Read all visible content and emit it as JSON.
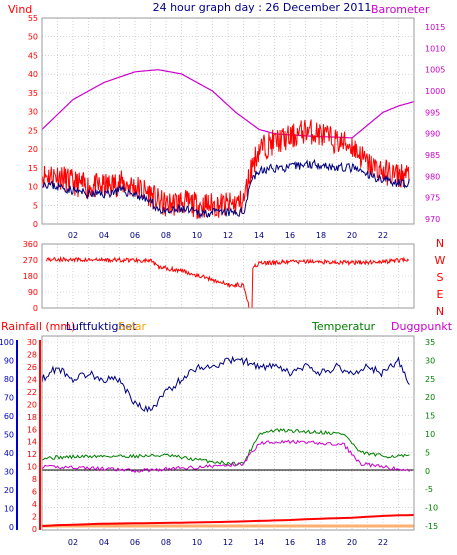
{
  "header": {
    "left": "Vind",
    "center": "24 hour graph day : 26 December 2011",
    "right": "Barometer"
  },
  "colors": {
    "red": "#ff0000",
    "blue": "#000080",
    "magenta": "#cc00cc",
    "green": "#008000",
    "orange": "#ffb070",
    "black": "#000000",
    "grid": "#bbbbbb"
  },
  "chart_data": [
    {
      "type": "line",
      "panel": "wind-barometer",
      "x_ticks": [
        "02",
        "04",
        "06",
        "08",
        "10",
        "12",
        "14",
        "16",
        "18",
        "20",
        "22"
      ],
      "xlim": [
        0,
        24
      ],
      "left_axis": {
        "label": "Vind",
        "ylim": [
          0,
          55
        ],
        "ticks": [
          0,
          5,
          10,
          15,
          20,
          25,
          30,
          35,
          40,
          45,
          50,
          55
        ]
      },
      "right_axis": {
        "label": "Barometer",
        "ylim": [
          970,
          1015
        ],
        "ticks": [
          970,
          975,
          980,
          985,
          990,
          995,
          1000,
          1005,
          1010,
          1015
        ]
      },
      "series": [
        {
          "axis": "left",
          "color": "red",
          "x": [
            0,
            1,
            2,
            3,
            4,
            5,
            6,
            7,
            7.5,
            8,
            9,
            10,
            11,
            12,
            13,
            13.5,
            14,
            15,
            16,
            17,
            18,
            19,
            20,
            21,
            22,
            23,
            23.7
          ],
          "y": [
            13,
            13,
            11,
            10,
            10,
            11,
            10,
            8,
            6,
            5,
            6,
            5,
            5,
            5,
            6,
            15,
            20,
            22,
            23,
            25,
            24,
            22,
            21,
            16,
            14,
            13,
            13
          ]
        },
        {
          "axis": "left",
          "color": "blue",
          "x": [
            0,
            1,
            2,
            3,
            4,
            5,
            6,
            7,
            7.5,
            8,
            9,
            10,
            11,
            12,
            13,
            13.5,
            14,
            15,
            16,
            17,
            18,
            19,
            20,
            21,
            22,
            23,
            23.7
          ],
          "y": [
            11,
            10,
            9,
            8,
            8,
            9,
            8,
            6,
            4,
            3,
            4,
            3,
            3,
            3,
            3,
            12,
            14,
            15,
            15,
            16,
            16,
            15,
            15,
            13,
            12,
            11,
            11
          ]
        },
        {
          "axis": "right",
          "color": "magenta",
          "x": [
            0,
            2,
            4,
            6,
            7.5,
            9,
            11,
            12.5,
            14,
            15,
            16,
            17,
            18,
            19,
            20,
            21,
            22,
            23,
            24
          ],
          "y": [
            991,
            998,
            1002,
            1004.5,
            1005,
            1004,
            1000,
            995,
            991,
            990,
            989.7,
            989.5,
            989.3,
            989.2,
            989,
            992,
            995,
            996.5,
            997.5
          ]
        }
      ]
    },
    {
      "type": "scatter",
      "panel": "wind-direction",
      "xlim": [
        0,
        24
      ],
      "ylim": [
        0,
        360
      ],
      "y_ticks": [
        0,
        90,
        180,
        270,
        360
      ],
      "compass": [
        "N",
        "W",
        "S",
        "E",
        "N"
      ],
      "series": [
        {
          "color": "red",
          "x": [
            0,
            3,
            6,
            7,
            7.5,
            9,
            11,
            12,
            13,
            13.4,
            13.6,
            14,
            16,
            18,
            20,
            22,
            23.7
          ],
          "y": [
            275,
            270,
            270,
            265,
            230,
            210,
            160,
            130,
            130,
            0,
            230,
            250,
            260,
            260,
            255,
            260,
            275
          ]
        }
      ]
    },
    {
      "type": "line",
      "panel": "rain-humidity-temperature",
      "x_ticks": [
        "02",
        "04",
        "06",
        "08",
        "10",
        "12",
        "14",
        "16",
        "18",
        "20",
        "22"
      ],
      "xlim": [
        0,
        24
      ],
      "legend": [
        "Rainfall (mm)",
        "Luftfuktighet",
        "Solar",
        "Temperatur",
        "Duggpunkt"
      ],
      "axes": {
        "rain": {
          "ticks": [
            0,
            10,
            20,
            30,
            40,
            50,
            60,
            70,
            80,
            90,
            100
          ],
          "ylim": [
            0,
            100
          ]
        },
        "humidity": {
          "ticks": [
            0,
            2,
            4,
            6,
            8,
            10,
            12,
            14,
            16,
            18,
            20,
            22,
            24,
            26,
            28,
            30
          ],
          "ylim": [
            0,
            30
          ]
        },
        "temperature": {
          "ticks": [
            -15,
            -10,
            -5,
            0,
            5,
            10,
            15,
            20,
            25,
            30,
            35
          ],
          "ylim": [
            -15,
            35
          ]
        }
      },
      "series": [
        {
          "name": "Luftfuktighet",
          "axis": "humidity",
          "color": "blue",
          "x": [
            0,
            1,
            2,
            3,
            4,
            5,
            5.5,
            6,
            7,
            8,
            9,
            10,
            11,
            12,
            13,
            14,
            15,
            16,
            17,
            18,
            19,
            20,
            21,
            22,
            23,
            23.7
          ],
          "y": [
            24,
            26,
            24,
            25,
            24,
            24,
            22,
            20,
            19,
            22,
            24,
            26,
            26,
            27,
            27,
            26,
            26,
            25,
            26,
            25,
            26,
            25,
            26,
            25,
            27,
            23
          ]
        },
        {
          "name": "Temperatur",
          "axis": "temperature",
          "color": "green",
          "x": [
            0,
            2,
            4,
            6,
            8,
            10,
            12,
            13,
            14,
            15,
            18,
            19.5,
            20.5,
            22,
            23.7
          ],
          "y": [
            3.5,
            3.8,
            4,
            4,
            4.2,
            3,
            2,
            2,
            10,
            11,
            10.5,
            10,
            5,
            4,
            4
          ]
        },
        {
          "name": "Duggpunkt",
          "axis": "temperature",
          "color": "magenta",
          "x": [
            0,
            2,
            4,
            6,
            8,
            10,
            12,
            13,
            14,
            15,
            18,
            19.5,
            20.5,
            22,
            23.7
          ],
          "y": [
            1,
            1,
            0.5,
            0,
            0.5,
            1,
            1.5,
            2,
            7.5,
            8,
            7.5,
            7,
            2,
            1,
            0
          ]
        },
        {
          "name": "Rainfall (mm)",
          "axis": "rain",
          "color": "red",
          "x": [
            0,
            1,
            2,
            3,
            4,
            6,
            8,
            10,
            12,
            14,
            16,
            18,
            20,
            21,
            22,
            23,
            24
          ],
          "y": [
            0.5,
            1,
            1.2,
            1.5,
            1.8,
            2,
            2.2,
            2.5,
            2.8,
            3.3,
            3.8,
            4.5,
            5,
            5.5,
            6,
            6.3,
            6.5
          ]
        },
        {
          "name": "Solar",
          "axis": "temperature",
          "color": "orange",
          "x": [
            0,
            24
          ],
          "y": [
            -15,
            -15
          ]
        }
      ]
    }
  ]
}
